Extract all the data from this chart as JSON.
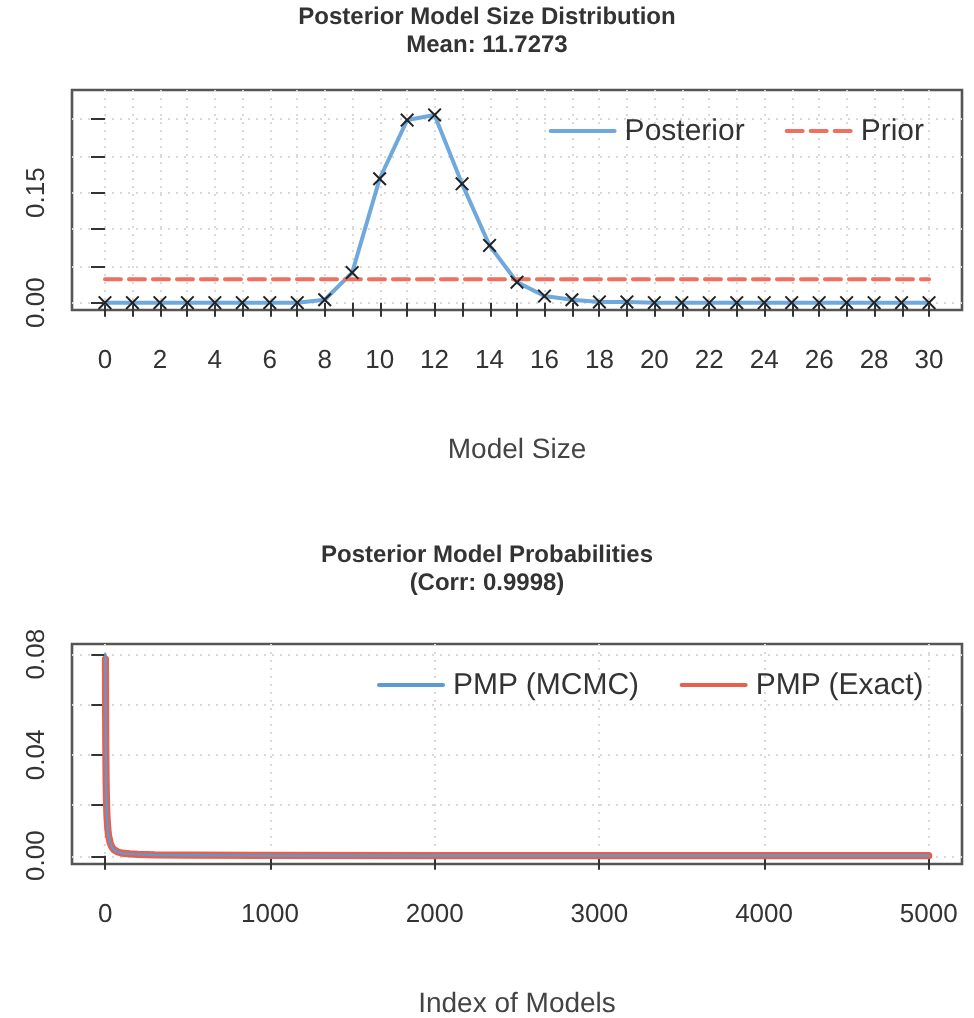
{
  "chart_data": [
    {
      "type": "line",
      "title": "Posterior Model Size Distribution",
      "subtitle": "Mean: 11.7273",
      "xlabel": "Model Size",
      "x": [
        0,
        1,
        2,
        3,
        4,
        5,
        6,
        7,
        8,
        9,
        10,
        11,
        12,
        13,
        14,
        15,
        16,
        17,
        18,
        19,
        20,
        21,
        22,
        23,
        24,
        25,
        26,
        27,
        28,
        29,
        30
      ],
      "series": [
        {
          "name": "Posterior",
          "color": "#6fa8dc",
          "marker": "cross",
          "line_style": "solid",
          "values": [
            0,
            0,
            0,
            0,
            0,
            0,
            0,
            0,
            0.004,
            0.041,
            0.169,
            0.249,
            0.256,
            0.162,
            0.078,
            0.028,
            0.009,
            0.004,
            0.001,
            0.001,
            0,
            0,
            0,
            0,
            0,
            0,
            0,
            0,
            0,
            0,
            0
          ]
        },
        {
          "name": "Prior",
          "color": "#f07060",
          "marker": "none",
          "line_style": "dashed",
          "values": [
            0.032,
            0.032,
            0.032,
            0.032,
            0.032,
            0.032,
            0.032,
            0.032,
            0.032,
            0.032,
            0.032,
            0.032,
            0.032,
            0.032,
            0.032,
            0.032,
            0.032,
            0.032,
            0.032,
            0.032,
            0.032,
            0.032,
            0.032,
            0.032,
            0.032,
            0.032,
            0.032,
            0.032,
            0.032,
            0.032,
            0.032
          ]
        }
      ],
      "xlim": [
        -1.2,
        31.2
      ],
      "ylim": [
        -0.01,
        0.29
      ],
      "xticks": [
        0,
        {
          "value": 1,
          "label": null
        },
        2,
        {
          "value": 3,
          "label": null
        },
        4,
        {
          "value": 5,
          "label": null
        },
        6,
        {
          "value": 7,
          "label": null
        },
        8,
        {
          "value": 9,
          "label": null
        },
        10,
        {
          "value": 11,
          "label": null
        },
        12,
        {
          "value": 13,
          "label": null
        },
        14,
        {
          "value": 15,
          "label": null
        },
        16,
        {
          "value": 17,
          "label": null
        },
        18,
        {
          "value": 19,
          "label": null
        },
        20,
        {
          "value": 21,
          "label": null
        },
        22,
        {
          "value": 23,
          "label": null
        },
        24,
        {
          "value": 25,
          "label": null
        },
        26,
        {
          "value": 27,
          "label": null
        },
        28,
        {
          "value": 29,
          "label": null
        },
        30
      ],
      "yticks": [
        {
          "value": 0,
          "label": "0.00"
        },
        {
          "value": 0.05,
          "label": null
        },
        {
          "value": 0.1,
          "label": null
        },
        {
          "value": 0.15,
          "label": "0.15"
        },
        {
          "value": 0.2,
          "label": null
        },
        {
          "value": 0.25,
          "label": null
        }
      ],
      "grid": true,
      "legend": "top right"
    },
    {
      "type": "line",
      "title": "Posterior Model Probabilities",
      "subtitle": "(Corr: 0.9998)",
      "xlabel": "Index of Models",
      "series": [
        {
          "name": "PMP (MCMC)",
          "color": "#5b9bd5",
          "x": [
            1,
            2,
            3,
            5,
            8,
            10,
            15,
            20,
            30,
            40,
            50,
            75,
            100,
            150,
            200,
            300,
            500,
            1000,
            2000,
            3000,
            4000,
            5000
          ],
          "values": [
            0.08,
            0.06,
            0.045,
            0.03,
            0.02,
            0.016,
            0.011,
            0.008,
            0.005,
            0.0035,
            0.0025,
            0.0015,
            0.001,
            0.0007,
            0.0005,
            0.0003,
            0.0002,
            0.0001,
            0,
            0,
            0,
            0
          ]
        },
        {
          "name": "PMP (Exact)",
          "color": "#e8604c",
          "x": [
            1,
            2,
            3,
            5,
            8,
            10,
            15,
            20,
            30,
            40,
            50,
            75,
            100,
            150,
            200,
            300,
            500,
            1000,
            2000,
            3000,
            4000,
            5000
          ],
          "values": [
            0.078,
            0.059,
            0.045,
            0.03,
            0.02,
            0.016,
            0.011,
            0.008,
            0.005,
            0.0035,
            0.0025,
            0.0015,
            0.001,
            0.0007,
            0.0005,
            0.0003,
            0.0002,
            0.0001,
            0,
            0,
            0,
            0
          ]
        }
      ],
      "xlim": [
        -202,
        5202
      ],
      "ylim": [
        -0.0033,
        0.084
      ],
      "xticks": [
        0,
        1000,
        2000,
        3000,
        4000,
        5000
      ],
      "yticks": [
        {
          "value": 0,
          "label": "0.00"
        },
        {
          "value": 0.02,
          "label": null
        },
        {
          "value": 0.04,
          "label": "0.04"
        },
        {
          "value": 0.06,
          "label": null
        },
        {
          "value": 0.08,
          "label": "0.08"
        }
      ],
      "grid": true,
      "legend": "top right"
    }
  ]
}
